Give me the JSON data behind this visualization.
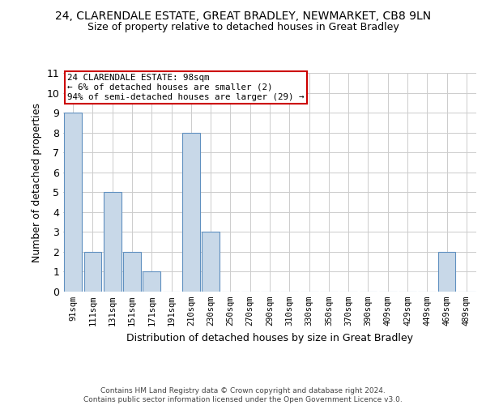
{
  "title": "24, CLARENDALE ESTATE, GREAT BRADLEY, NEWMARKET, CB8 9LN",
  "subtitle": "Size of property relative to detached houses in Great Bradley",
  "xlabel": "Distribution of detached houses by size in Great Bradley",
  "ylabel": "Number of detached properties",
  "categories": [
    "91sqm",
    "111sqm",
    "131sqm",
    "151sqm",
    "171sqm",
    "191sqm",
    "210sqm",
    "230sqm",
    "250sqm",
    "270sqm",
    "290sqm",
    "310sqm",
    "330sqm",
    "350sqm",
    "370sqm",
    "390sqm",
    "409sqm",
    "429sqm",
    "449sqm",
    "469sqm",
    "489sqm"
  ],
  "values": [
    9,
    2,
    5,
    2,
    1,
    0,
    8,
    3,
    0,
    0,
    0,
    0,
    0,
    0,
    0,
    0,
    0,
    0,
    0,
    2,
    0
  ],
  "bar_color": "#c8d8e8",
  "bar_edge_color": "#6090c0",
  "ylim": [
    0,
    11
  ],
  "yticks": [
    0,
    1,
    2,
    3,
    4,
    5,
    6,
    7,
    8,
    9,
    10,
    11
  ],
  "annotation_text": "24 CLARENDALE ESTATE: 98sqm\n← 6% of detached houses are smaller (2)\n94% of semi-detached houses are larger (29) →",
  "annotation_box_color": "#ffffff",
  "annotation_box_edge": "#cc0000",
  "footer1": "Contains HM Land Registry data © Crown copyright and database right 2024.",
  "footer2": "Contains public sector information licensed under the Open Government Licence v3.0.",
  "background_color": "#ffffff",
  "grid_color": "#cccccc"
}
